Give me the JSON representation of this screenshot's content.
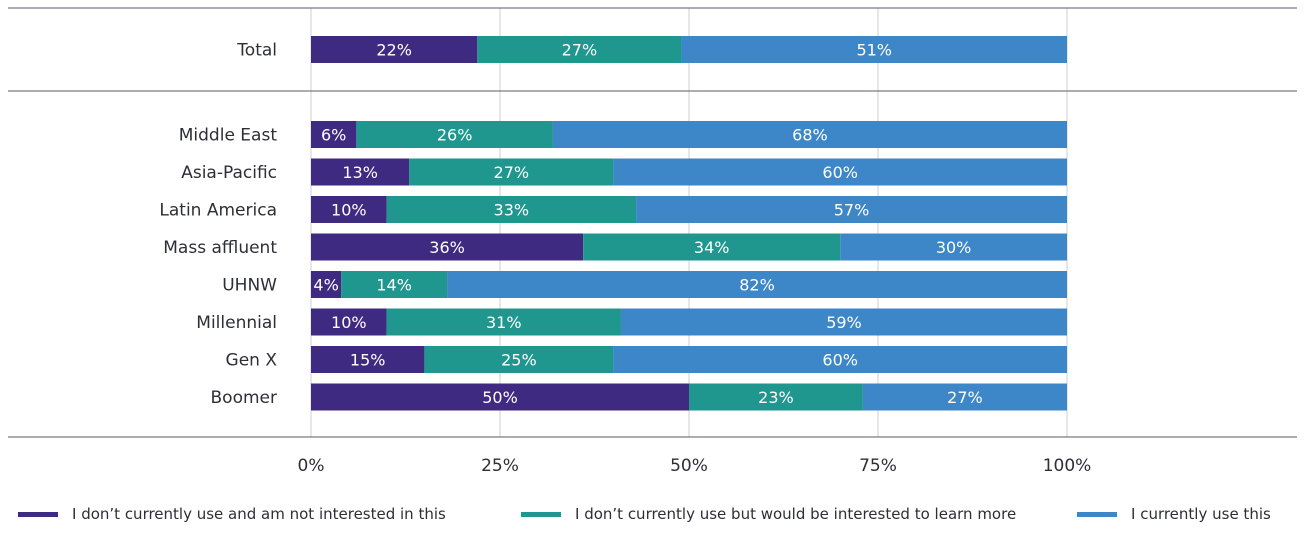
{
  "chart_data": {
    "type": "bar",
    "orientation": "horizontal",
    "stacked": true,
    "x_ticks": [
      "0%",
      "25%",
      "50%",
      "75%",
      "100%"
    ],
    "xlim": [
      0,
      100
    ],
    "grid": true,
    "legend_position": "bottom",
    "groups": [
      {
        "categories": [
          "Total"
        ]
      },
      {
        "categories": [
          "Middle East",
          "Asia-Pacific",
          "Latin America",
          "Mass affluent",
          "UHNW",
          "Millennial",
          "Gen X",
          "Boomer"
        ]
      }
    ],
    "series": [
      {
        "name": "I don’t currently use and am not interested in this",
        "color": "#3f2a82",
        "values": [
          22,
          6,
          13,
          10,
          36,
          4,
          10,
          15,
          50
        ],
        "labels": [
          "22%",
          "6%",
          "13%",
          "10%",
          "36%",
          "4%",
          "10%",
          "15%",
          "50%"
        ]
      },
      {
        "name": "I don’t currently use but would be interested to learn more",
        "color": "#1f968e",
        "values": [
          27,
          26,
          27,
          33,
          34,
          14,
          31,
          25,
          23
        ],
        "labels": [
          "27%",
          "26%",
          "27%",
          "33%",
          "34%",
          "14%",
          "31%",
          "25%",
          "23%"
        ]
      },
      {
        "name": "I currently use this",
        "color": "#3d87c8",
        "values": [
          51,
          68,
          60,
          57,
          30,
          82,
          59,
          60,
          27
        ],
        "labels": [
          "51%",
          "68%",
          "60%",
          "57%",
          "30%",
          "82%",
          "59%",
          "60%",
          "27%"
        ]
      }
    ]
  }
}
